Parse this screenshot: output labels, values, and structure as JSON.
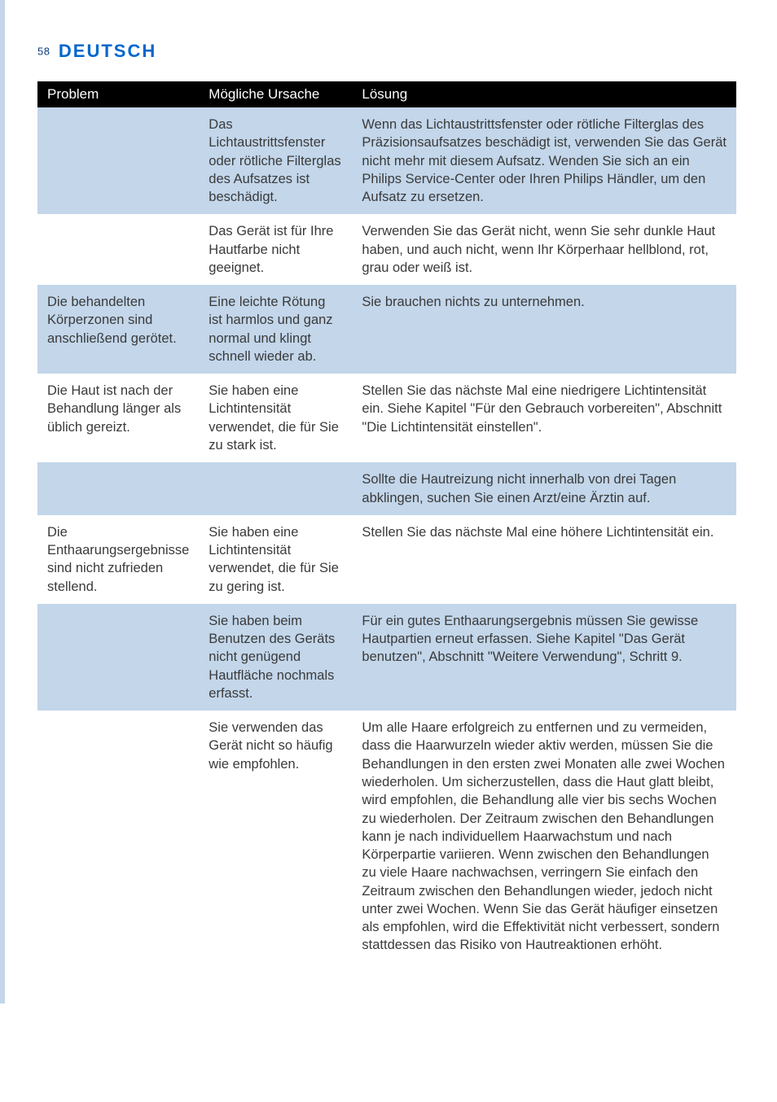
{
  "page_number": "58",
  "language_heading": "DEUTSCH",
  "columns": {
    "problem": "Problem",
    "cause": "Mögliche Ursache",
    "solution": "Lösung"
  },
  "rows": [
    {
      "stripe": "odd",
      "problem": "",
      "cause": "Das Lichtaustrittsfenster oder rötliche Filterglas des Aufsatzes ist beschädigt.",
      "solution": "Wenn das Lichtaustrittsfenster oder rötliche Filterglas des Präzisionsaufsatzes beschädigt ist, verwenden Sie das Gerät nicht mehr mit diesem Aufsatz. Wenden Sie sich an ein Philips Service-Center oder Ihren Philips Händler, um den Aufsatz zu ersetzen."
    },
    {
      "stripe": "even",
      "problem": "",
      "cause": "Das Gerät ist für Ihre Hautfarbe nicht geeignet.",
      "solution": "Verwenden Sie das Gerät nicht, wenn Sie sehr dunkle Haut haben, und auch nicht, wenn Ihr Körperhaar hellblond, rot, grau oder weiß ist."
    },
    {
      "stripe": "odd",
      "problem": "Die behandelten Körperzonen sind anschließend gerötet.",
      "cause": "Eine leichte Rötung ist harmlos und ganz normal und klingt schnell wieder ab.",
      "solution": "Sie brauchen nichts zu unternehmen."
    },
    {
      "stripe": "even",
      "problem": "Die Haut ist nach der Behandlung länger als üblich gereizt.",
      "cause": "Sie haben eine Lichtintensität verwendet, die für Sie zu stark ist.",
      "solution": "Stellen Sie das nächste Mal eine niedrigere Lichtintensität ein. Siehe Kapitel \"Für den Gebrauch vorbereiten\", Abschnitt \"Die Lichtintensität einstellen\"."
    },
    {
      "stripe": "odd",
      "problem": "",
      "cause": "",
      "solution": "Sollte die Hautreizung nicht innerhalb von drei Tagen abklingen, suchen Sie einen Arzt/eine Ärztin auf."
    },
    {
      "stripe": "even",
      "problem": "Die Enthaarungsergebnisse sind nicht zufrieden stellend.",
      "cause": "Sie haben eine Lichtintensität verwendet, die für Sie zu gering ist.",
      "solution": "Stellen Sie das nächste Mal eine höhere Lichtintensität ein."
    },
    {
      "stripe": "odd",
      "problem": "",
      "cause": "Sie haben beim Benutzen des Geräts nicht genügend Hautfläche nochmals erfasst.",
      "solution": "Für ein gutes Enthaarungsergebnis müssen Sie gewisse Hautpartien erneut erfassen. Siehe Kapitel \"Das Gerät benutzen\", Abschnitt \"Weitere Verwendung\", Schritt 9."
    },
    {
      "stripe": "even",
      "problem": "",
      "cause": "Sie verwenden das Gerät nicht so häufig wie empfohlen.",
      "solution": "Um alle Haare erfolgreich zu entfernen und zu vermeiden, dass die Haarwurzeln wieder aktiv werden, müssen Sie die Behandlungen in den ersten zwei Monaten alle zwei Wochen wiederholen. Um sicherzustellen, dass die Haut glatt bleibt, wird empfohlen, die Behandlung alle vier bis sechs Wochen zu wiederholen. Der Zeitraum zwischen den Behandlungen kann je nach individuellem Haarwachstum und nach Körperpartie variieren. Wenn zwischen den Behandlungen zu viele Haare nachwachsen, verringern Sie einfach den Zeitraum zwischen den Behandlungen wieder, jedoch nicht unter zwei Wochen. Wenn Sie das Gerät häufiger einsetzen als empfohlen, wird die Effektivität nicht verbessert, sondern stattdessen das Risiko von Hautreaktionen erhöht."
    }
  ],
  "colors": {
    "header_bg": "#000000",
    "header_fg": "#ffffff",
    "stripe_odd": "#c3d6ea",
    "stripe_even": "#ffffff",
    "accent": "#0066cc",
    "left_bar": "#c3d6ea"
  }
}
